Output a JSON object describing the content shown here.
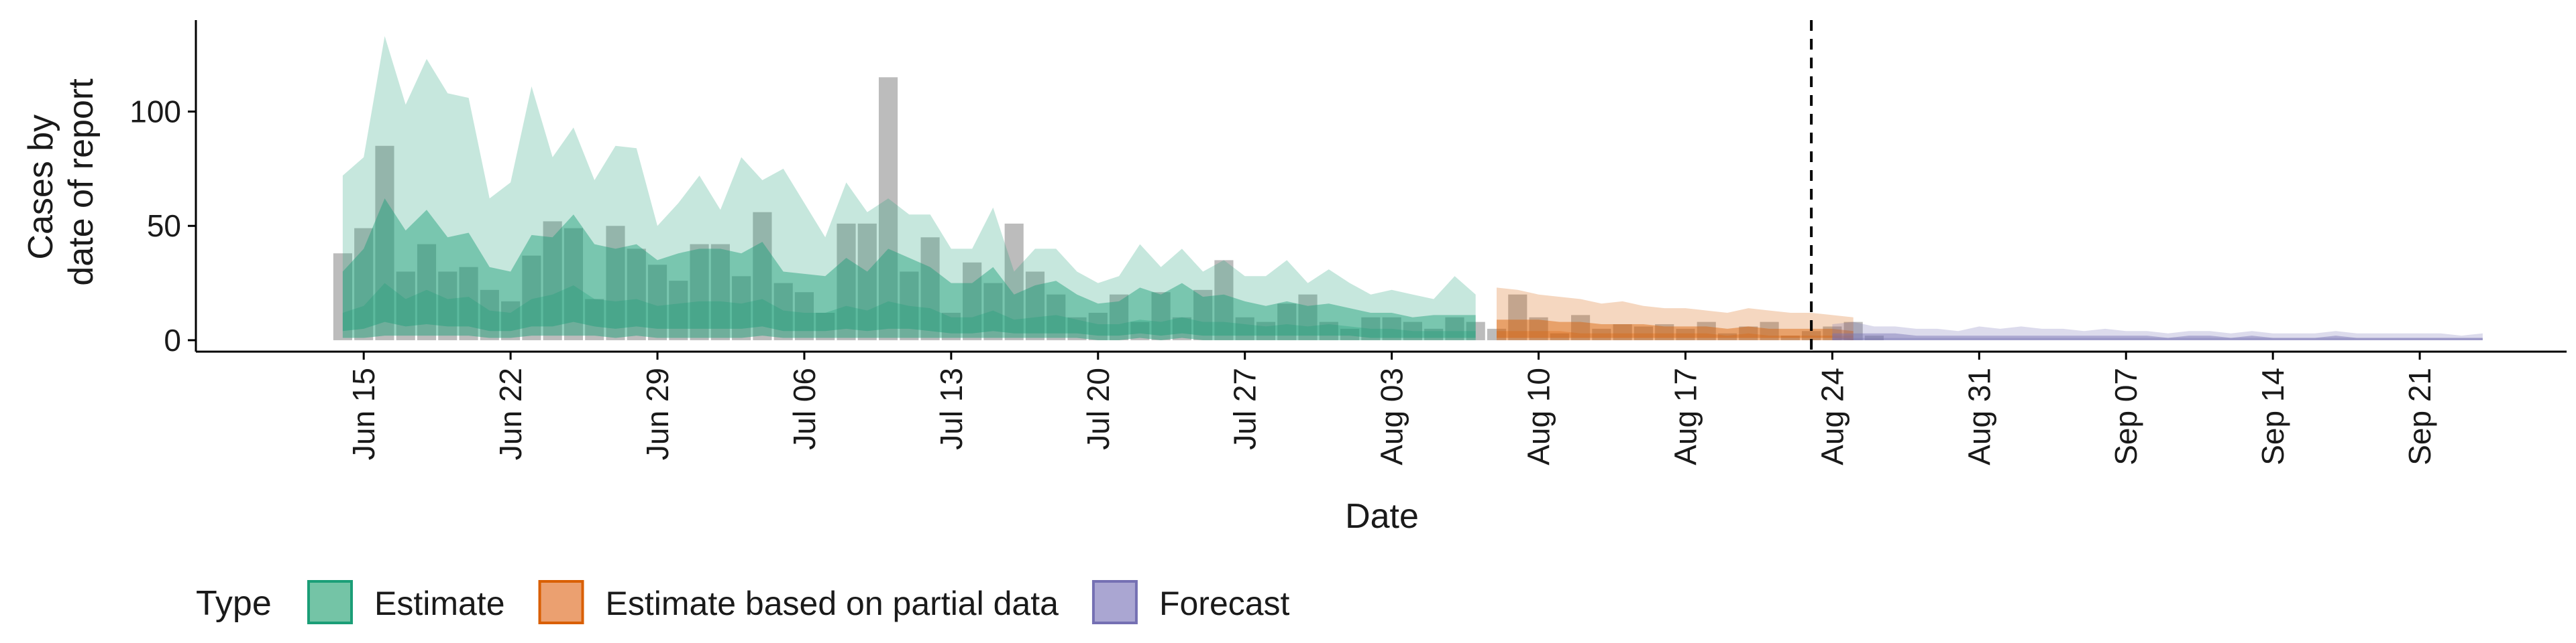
{
  "chart_data": {
    "type": "area",
    "xlabel": "Date",
    "ylabel_lines": [
      "Cases by",
      "date of report"
    ],
    "x_range": [
      "2020-06-07",
      "2020-09-28"
    ],
    "ylim": [
      -5,
      140
    ],
    "y_ticks": [
      0,
      50,
      100
    ],
    "x_ticks": [
      {
        "date": "2020-06-15",
        "label": "Jun 15"
      },
      {
        "date": "2020-06-22",
        "label": "Jun 22"
      },
      {
        "date": "2020-06-29",
        "label": "Jun 29"
      },
      {
        "date": "2020-07-06",
        "label": "Jul 06"
      },
      {
        "date": "2020-07-13",
        "label": "Jul 13"
      },
      {
        "date": "2020-07-20",
        "label": "Jul 20"
      },
      {
        "date": "2020-07-27",
        "label": "Jul 27"
      },
      {
        "date": "2020-08-03",
        "label": "Aug 03"
      },
      {
        "date": "2020-08-10",
        "label": "Aug 10"
      },
      {
        "date": "2020-08-17",
        "label": "Aug 17"
      },
      {
        "date": "2020-08-24",
        "label": "Aug 24"
      },
      {
        "date": "2020-08-31",
        "label": "Aug 31"
      },
      {
        "date": "2020-09-07",
        "label": "Sep 07"
      },
      {
        "date": "2020-09-14",
        "label": "Sep 14"
      },
      {
        "date": "2020-09-21",
        "label": "Sep 21"
      }
    ],
    "vline_date": "2020-08-23",
    "grid": false,
    "legend": {
      "title": "Type",
      "placement": "bottom",
      "entries": [
        {
          "label": "Estimate",
          "fill": "#74c4a6",
          "stroke": "#1b9e77"
        },
        {
          "label": "Estimate based on partial data",
          "fill": "#eba070",
          "stroke": "#d95f02"
        },
        {
          "label": "Forecast",
          "fill": "#aaa6d2",
          "stroke": "#7570b3"
        }
      ]
    },
    "colors": {
      "estimate": "#1b9e77",
      "partial": "#d95f02",
      "forecast": "#7570b3",
      "bars": "#a6a6a6"
    },
    "observed_cases": {
      "start_date": "2020-06-14",
      "values": [
        38,
        49,
        85,
        30,
        42,
        30,
        32,
        22,
        17,
        37,
        52,
        49,
        18,
        50,
        40,
        33,
        26,
        42,
        42,
        28,
        56,
        25,
        21,
        12,
        51,
        51,
        115,
        30,
        45,
        12,
        34,
        25,
        51,
        30,
        20,
        10,
        12,
        20,
        8,
        21,
        10,
        22,
        35,
        10,
        8,
        16,
        20,
        8,
        5,
        10,
        10,
        8,
        5,
        10,
        8,
        5,
        20,
        10,
        3,
        11,
        5,
        7,
        6,
        7,
        5,
        8,
        3,
        6,
        8,
        2,
        4,
        6,
        8,
        2
      ]
    },
    "series": [
      {
        "name": "Estimate",
        "start_date": "2020-06-14",
        "upper_90": [
          72,
          80,
          133,
          103,
          123,
          108,
          106,
          62,
          69,
          111,
          80,
          93,
          70,
          85,
          84,
          50,
          60,
          72,
          57,
          80,
          70,
          75,
          60,
          45,
          69,
          56,
          62,
          55,
          55,
          40,
          40,
          58,
          30,
          40,
          40,
          30,
          25,
          28,
          42,
          32,
          40,
          30,
          35,
          28,
          28,
          35,
          25,
          31,
          25,
          20,
          22,
          20,
          18,
          28,
          20
        ],
        "upper_50": [
          30,
          40,
          62,
          48,
          57,
          45,
          47,
          32,
          30,
          46,
          45,
          55,
          42,
          40,
          42,
          35,
          38,
          40,
          40,
          38,
          43,
          30,
          29,
          28,
          36,
          30,
          40,
          36,
          32,
          25,
          25,
          32,
          20,
          24,
          26,
          20,
          16,
          17,
          23,
          20,
          25,
          19,
          20,
          17,
          15,
          17,
          15,
          16,
          14,
          12,
          12,
          10,
          11,
          11,
          11
        ],
        "median": [
          12,
          15,
          25,
          18,
          22,
          18,
          19,
          13,
          12,
          18,
          20,
          24,
          18,
          17,
          18,
          15,
          16,
          17,
          17,
          16,
          18,
          13,
          12,
          12,
          15,
          13,
          17,
          15,
          14,
          10,
          10,
          13,
          9,
          10,
          11,
          9,
          7,
          7,
          9,
          8,
          10,
          8,
          8,
          7,
          6,
          7,
          6,
          7,
          6,
          5,
          5,
          4,
          4,
          4,
          4
        ],
        "lower_50": [
          4,
          5,
          8,
          6,
          7,
          6,
          6,
          4,
          4,
          6,
          6,
          8,
          6,
          5,
          6,
          5,
          5,
          5,
          5,
          5,
          6,
          4,
          4,
          4,
          5,
          4,
          5,
          5,
          4,
          3,
          3,
          4,
          3,
          3,
          3,
          3,
          2,
          2,
          3,
          2,
          3,
          2,
          2,
          2,
          2,
          2,
          2,
          2,
          2,
          1,
          1,
          1,
          1,
          1,
          1
        ],
        "lower_90": [
          1,
          1,
          2,
          2,
          2,
          2,
          2,
          1,
          1,
          2,
          2,
          2,
          2,
          1,
          2,
          1,
          1,
          1,
          1,
          1,
          2,
          1,
          1,
          1,
          1,
          1,
          1,
          1,
          1,
          1,
          1,
          1,
          1,
          1,
          1,
          1,
          0,
          0,
          1,
          0,
          1,
          0,
          0,
          0,
          0,
          0,
          0,
          0,
          0,
          0,
          0,
          0,
          0,
          0,
          0
        ]
      },
      {
        "name": "Estimate based on partial data",
        "start_date": "2020-08-08",
        "upper_90": [
          23,
          22,
          20,
          19,
          18,
          16,
          17,
          15,
          14,
          14,
          13,
          12,
          14,
          13,
          12,
          12,
          11,
          10
        ],
        "upper_50": [
          9,
          9,
          9,
          8,
          8,
          7,
          7,
          7,
          6,
          6,
          6,
          5,
          6,
          5,
          5,
          5,
          5,
          4
        ],
        "median": [
          4,
          4,
          4,
          4,
          3,
          3,
          3,
          3,
          3,
          3,
          3,
          2,
          3,
          2,
          2,
          2,
          2,
          2
        ],
        "lower_50": [
          1,
          1,
          1,
          1,
          1,
          1,
          1,
          1,
          1,
          1,
          1,
          1,
          1,
          1,
          1,
          1,
          1,
          0
        ],
        "lower_90": [
          0,
          0,
          0,
          0,
          0,
          0,
          0,
          0,
          0,
          0,
          0,
          0,
          0,
          0,
          0,
          0,
          0,
          0
        ]
      },
      {
        "name": "Forecast",
        "start_date": "2020-08-24",
        "upper_90": [
          7,
          8,
          6,
          6,
          5,
          5,
          4,
          6,
          5,
          6,
          5,
          5,
          4,
          5,
          4,
          4,
          3,
          4,
          4,
          3,
          4,
          3,
          3,
          3,
          4,
          3,
          3,
          3,
          3,
          3,
          2,
          3
        ],
        "upper_50": [
          3,
          3,
          3,
          3,
          2,
          2,
          2,
          2,
          2,
          2,
          2,
          2,
          2,
          2,
          2,
          2,
          1,
          2,
          2,
          1,
          2,
          1,
          1,
          1,
          2,
          1,
          1,
          1,
          1,
          1,
          1,
          1
        ],
        "median": [
          1,
          1,
          1,
          1,
          1,
          1,
          1,
          1,
          1,
          1,
          1,
          1,
          1,
          1,
          1,
          1,
          1,
          1,
          1,
          1,
          1,
          1,
          1,
          1,
          1,
          1,
          1,
          1,
          1,
          1,
          1,
          1
        ],
        "lower_50": [
          0,
          0,
          0,
          0,
          0,
          0,
          0,
          0,
          0,
          0,
          0,
          0,
          0,
          0,
          0,
          0,
          0,
          0,
          0,
          0,
          0,
          0,
          0,
          0,
          0,
          0,
          0,
          0,
          0,
          0,
          0,
          0
        ],
        "lower_90": [
          0,
          0,
          0,
          0,
          0,
          0,
          0,
          0,
          0,
          0,
          0,
          0,
          0,
          0,
          0,
          0,
          0,
          0,
          0,
          0,
          0,
          0,
          0,
          0,
          0,
          0,
          0,
          0,
          0,
          0,
          0,
          0
        ]
      }
    ]
  }
}
